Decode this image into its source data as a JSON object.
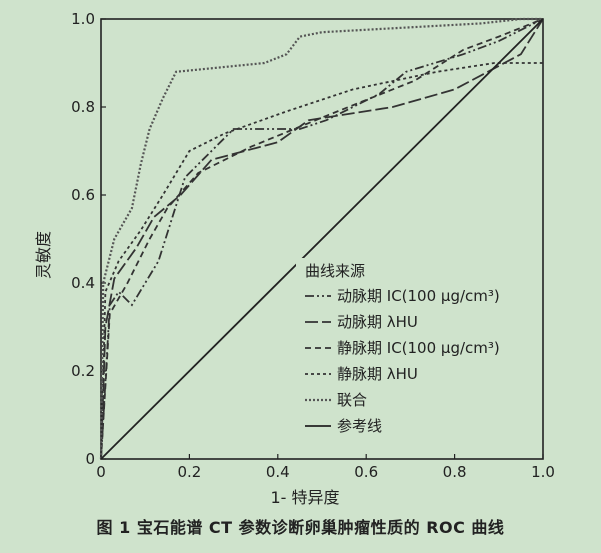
{
  "chart_data": {
    "type": "line",
    "title": "",
    "xlabel": "1- 特异度",
    "ylabel": "灵敏度",
    "xlim": [
      0,
      1
    ],
    "ylim": [
      0,
      1
    ],
    "xticks": [
      "0",
      "0.2",
      "0.4",
      "0.6",
      "0.8",
      "1.0"
    ],
    "yticks": [
      "0",
      "0.2",
      "0.4",
      "0.6",
      "0.8",
      "1.0"
    ],
    "grid": false,
    "legend_title": "曲线来源",
    "legend_position": "right",
    "series": [
      {
        "name": "动脉期 IC(100 μg/cm³)",
        "style": "dashdotdot",
        "x": [
          0,
          0.02,
          0.02,
          0.04,
          0.04,
          0.07,
          0.07,
          0.13,
          0.13,
          0.19,
          0.19,
          0.3,
          0.3,
          0.45,
          0.45,
          0.51,
          0.51,
          0.63,
          0.63,
          0.69,
          0.69,
          0.82,
          0.82,
          0.9,
          0.9,
          0.96,
          0.96,
          1.0
        ],
        "y": [
          0,
          0.35,
          0.35,
          0.38,
          0.38,
          0.35,
          0.35,
          0.45,
          0.45,
          0.64,
          0.64,
          0.75,
          0.75,
          0.75,
          0.75,
          0.77,
          0.77,
          0.83,
          0.83,
          0.88,
          0.88,
          0.92,
          0.92,
          0.95,
          0.95,
          0.98,
          0.98,
          1.0
        ]
      },
      {
        "name": "动脉期 λHU",
        "style": "longdash",
        "x": [
          0,
          0.01,
          0.01,
          0.03,
          0.03,
          0.08,
          0.08,
          0.12,
          0.12,
          0.18,
          0.18,
          0.25,
          0.25,
          0.4,
          0.4,
          0.47,
          0.47,
          0.66,
          0.66,
          0.8,
          0.8,
          0.95,
          0.95,
          1.0
        ],
        "y": [
          0,
          0.3,
          0.3,
          0.41,
          0.41,
          0.48,
          0.48,
          0.55,
          0.55,
          0.6,
          0.6,
          0.68,
          0.68,
          0.72,
          0.72,
          0.77,
          0.77,
          0.8,
          0.8,
          0.84,
          0.84,
          0.92,
          0.92,
          1.0
        ]
      },
      {
        "name": "静脉期 IC(100 μg/cm³)",
        "style": "dash",
        "x": [
          0,
          0.02,
          0.02,
          0.06,
          0.06,
          0.11,
          0.11,
          0.15,
          0.15,
          0.22,
          0.22,
          0.34,
          0.34,
          0.51,
          0.51,
          0.71,
          0.71,
          0.82,
          0.82,
          0.9,
          0.9,
          1.0
        ],
        "y": [
          0,
          0.33,
          0.33,
          0.4,
          0.4,
          0.5,
          0.5,
          0.57,
          0.57,
          0.65,
          0.65,
          0.71,
          0.71,
          0.78,
          0.78,
          0.86,
          0.86,
          0.93,
          0.93,
          0.96,
          0.96,
          1.0
        ]
      },
      {
        "name": "静脉期 λHU",
        "style": "shortdash",
        "x": [
          0,
          0.01,
          0.01,
          0.04,
          0.04,
          0.09,
          0.09,
          0.14,
          0.14,
          0.2,
          0.2,
          0.28,
          0.28,
          0.42,
          0.42,
          0.57,
          0.57,
          0.76,
          0.76,
          0.89,
          0.89,
          0.97,
          0.97,
          1.0
        ],
        "y": [
          0,
          0.38,
          0.38,
          0.45,
          0.45,
          0.52,
          0.52,
          0.6,
          0.6,
          0.7,
          0.7,
          0.74,
          0.74,
          0.79,
          0.79,
          0.84,
          0.84,
          0.88,
          0.88,
          0.9,
          0.9,
          0.9,
          0.9,
          0.9
        ]
      },
      {
        "name": "联合",
        "style": "dot",
        "x": [
          0,
          0.005,
          0.005,
          0.03,
          0.03,
          0.07,
          0.07,
          0.09,
          0.09,
          0.11,
          0.11,
          0.14,
          0.14,
          0.17,
          0.17,
          0.37,
          0.37,
          0.42,
          0.42,
          0.45,
          0.45,
          0.5,
          0.5,
          0.86,
          0.86,
          0.95,
          0.95,
          1.0
        ],
        "y": [
          0,
          0.4,
          0.4,
          0.5,
          0.5,
          0.57,
          0.57,
          0.67,
          0.67,
          0.75,
          0.75,
          0.82,
          0.82,
          0.88,
          0.88,
          0.9,
          0.9,
          0.92,
          0.92,
          0.96,
          0.96,
          0.97,
          0.97,
          0.99,
          0.99,
          1.0,
          1.0,
          1.0
        ]
      },
      {
        "name": "参考线",
        "style": "solid",
        "x": [
          0,
          1
        ],
        "y": [
          0,
          1
        ]
      }
    ]
  },
  "caption": "图 1  宝石能谱 CT 参数诊断卵巢肿瘤性质的 ROC 曲线"
}
